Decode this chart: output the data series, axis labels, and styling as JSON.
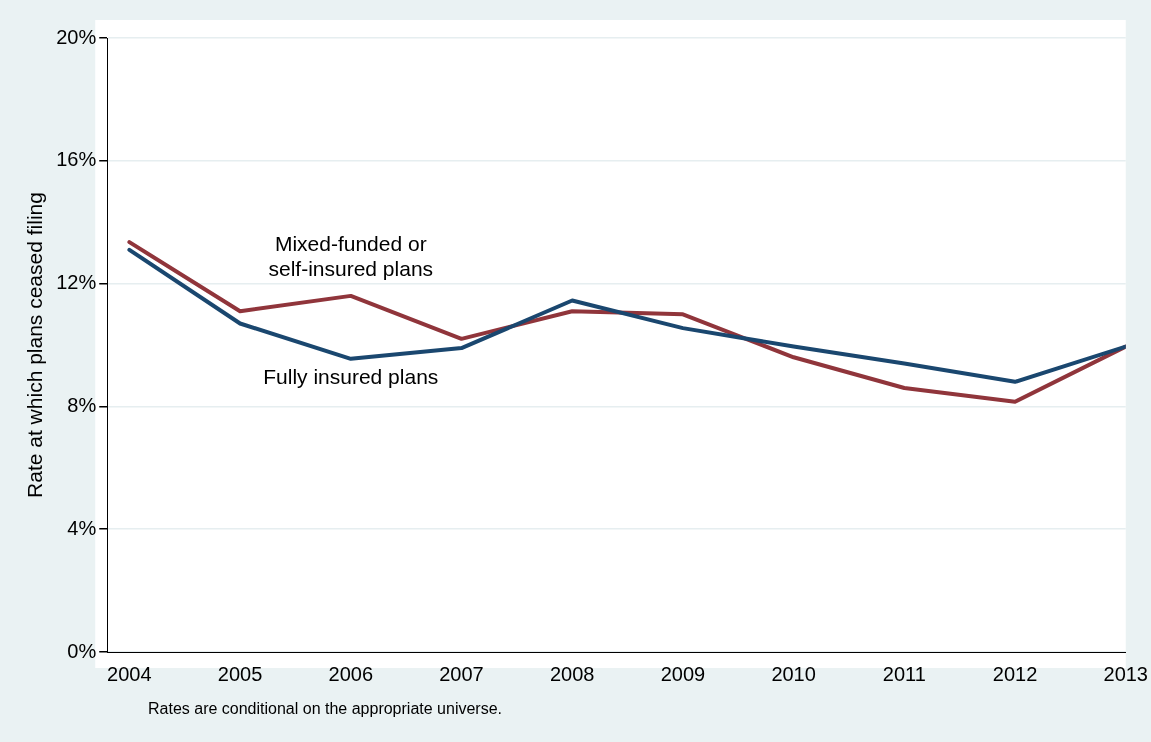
{
  "chart_data": {
    "type": "line",
    "ylabel": "Rate at which plans ceased filing",
    "x": [
      2004,
      2005,
      2006,
      2007,
      2008,
      2009,
      2010,
      2011,
      2012,
      2013
    ],
    "series": [
      {
        "name": "Fully insured plans",
        "color": "#1a476f",
        "values": [
          13.1,
          10.7,
          9.55,
          9.9,
          11.45,
          10.55,
          9.95,
          9.4,
          8.8,
          9.95
        ]
      },
      {
        "name": "Mixed-funded or self-insured plans",
        "color": "#90353b",
        "values": [
          13.35,
          11.1,
          11.6,
          10.2,
          11.1,
          11.0,
          9.6,
          8.6,
          8.15,
          9.95
        ]
      }
    ],
    "xlim": [
      2003.8,
      2013
    ],
    "xticks": [
      2004,
      2005,
      2006,
      2007,
      2008,
      2009,
      2010,
      2011,
      2012,
      2013
    ],
    "ylim": [
      0,
      20
    ],
    "yticks": [
      {
        "value": 0,
        "label": "0%"
      },
      {
        "value": 4,
        "label": "4%"
      },
      {
        "value": 8,
        "label": "8%"
      },
      {
        "value": 12,
        "label": "12%"
      },
      {
        "value": 16,
        "label": "16%"
      },
      {
        "value": 20,
        "label": "20%"
      }
    ],
    "grid": "y",
    "legend": false,
    "marker": "none",
    "line_style": "solid",
    "annotations": [
      "Rates are conditional on the appropriate universe."
    ]
  }
}
